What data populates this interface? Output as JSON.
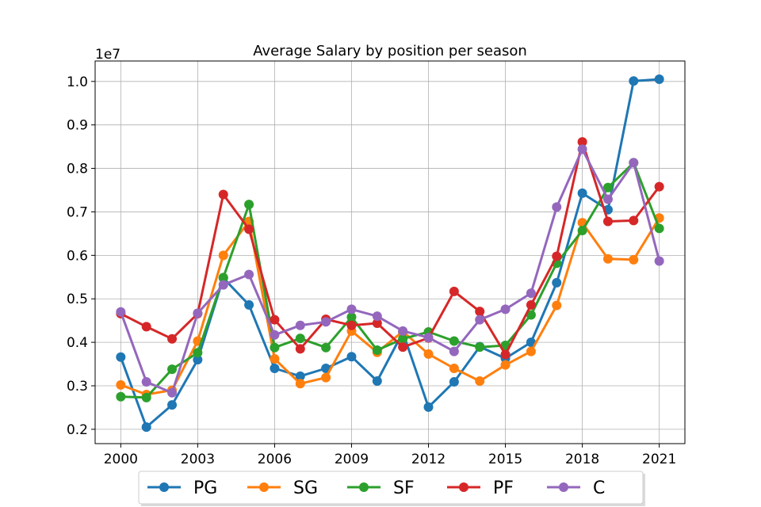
{
  "chart_data": {
    "type": "line",
    "title": "Average Salary by position per season",
    "xlabel": "",
    "ylabel": "",
    "y_offset_label": "1e7",
    "x": [
      2000,
      2001,
      2002,
      2003,
      2004,
      2005,
      2006,
      2007,
      2008,
      2009,
      2010,
      2011,
      2012,
      2013,
      2014,
      2015,
      2016,
      2017,
      2018,
      2019,
      2020,
      2021
    ],
    "x_ticks": [
      "2000",
      "2003",
      "2006",
      "2009",
      "2012",
      "2015",
      "2018",
      "2021"
    ],
    "y_ticks": [
      "0.2",
      "0.3",
      "0.4",
      "0.5",
      "0.6",
      "0.7",
      "0.8",
      "0.9",
      "1.0"
    ],
    "xlim": [
      1999.0,
      2022.0
    ],
    "ylim": [
      1670000,
      10470000
    ],
    "grid": true,
    "legend_position": "bottom-center",
    "series": [
      {
        "name": "PG",
        "color": "#1f77b4",
        "values": [
          3660000,
          2050000,
          2560000,
          3600000,
          5480000,
          4860000,
          3400000,
          3220000,
          3400000,
          3670000,
          3110000,
          4230000,
          2510000,
          3090000,
          3900000,
          3630000,
          4000000,
          5370000,
          7430000,
          7050000,
          10010000,
          10050000
        ]
      },
      {
        "name": "SG",
        "color": "#ff7f0e",
        "values": [
          3020000,
          2800000,
          2900000,
          4030000,
          6000000,
          6780000,
          3620000,
          3050000,
          3190000,
          4260000,
          3770000,
          4250000,
          3730000,
          3400000,
          3110000,
          3480000,
          3790000,
          4850000,
          6750000,
          5920000,
          5900000,
          6860000
        ]
      },
      {
        "name": "SF",
        "color": "#2ca02c",
        "values": [
          2750000,
          2730000,
          3380000,
          3760000,
          5490000,
          7170000,
          3880000,
          4090000,
          3880000,
          4580000,
          3820000,
          4080000,
          4240000,
          4030000,
          3890000,
          3930000,
          4630000,
          5820000,
          6570000,
          7560000,
          8130000,
          6620000
        ]
      },
      {
        "name": "PF",
        "color": "#d62728",
        "values": [
          4660000,
          4360000,
          4080000,
          4660000,
          7400000,
          6600000,
          4520000,
          3850000,
          4530000,
          4390000,
          4440000,
          3890000,
          4100000,
          5170000,
          4710000,
          3720000,
          4860000,
          5980000,
          8610000,
          6780000,
          6800000,
          7580000
        ]
      },
      {
        "name": "C",
        "color": "#9467bd",
        "values": [
          4700000,
          3090000,
          2840000,
          4670000,
          5320000,
          5560000,
          4170000,
          4390000,
          4470000,
          4760000,
          4600000,
          4260000,
          4110000,
          3790000,
          4520000,
          4760000,
          5130000,
          7110000,
          8440000,
          7290000,
          8130000,
          5870000
        ]
      }
    ]
  }
}
